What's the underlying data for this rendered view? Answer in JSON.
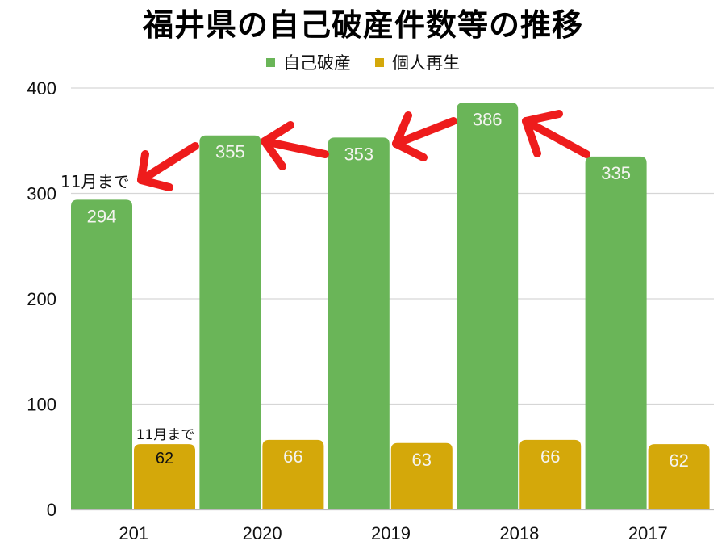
{
  "title": "福井県の自己破産件数等の推移",
  "legend": [
    {
      "label": "自己破産",
      "color": "#6ab558"
    },
    {
      "label": "個人再生",
      "color": "#d4a80a"
    }
  ],
  "annotations": {
    "note_bankruptcy_2021": "11月まで",
    "note_rehab_2021": "11月まで",
    "arrow_color": "#ee1c1c"
  },
  "chart_data": {
    "type": "bar",
    "title": "福井県の自己破産件数等の推移",
    "xlabel": "",
    "ylabel": "",
    "categories": [
      "201",
      "2020",
      "2019",
      "2018",
      "2017"
    ],
    "series": [
      {
        "name": "自己破産",
        "color": "#6ab558",
        "values": [
          294,
          355,
          353,
          386,
          335
        ]
      },
      {
        "name": "個人再生",
        "color": "#d4a80a",
        "values": [
          62,
          66,
          63,
          66,
          62
        ]
      }
    ],
    "ylim": [
      0,
      400
    ],
    "yticks": [
      0,
      100,
      200,
      300,
      400
    ],
    "grid": true,
    "legend_position": "top",
    "annotations": [
      {
        "text": "11月まで",
        "target": "201 / 自己破産"
      },
      {
        "text": "11月まで",
        "target": "201 / 個人再生"
      },
      {
        "type": "red-arrows",
        "description": "arrows pointing from each 自己破産 bar to the previous (newer) year's bar"
      }
    ]
  }
}
